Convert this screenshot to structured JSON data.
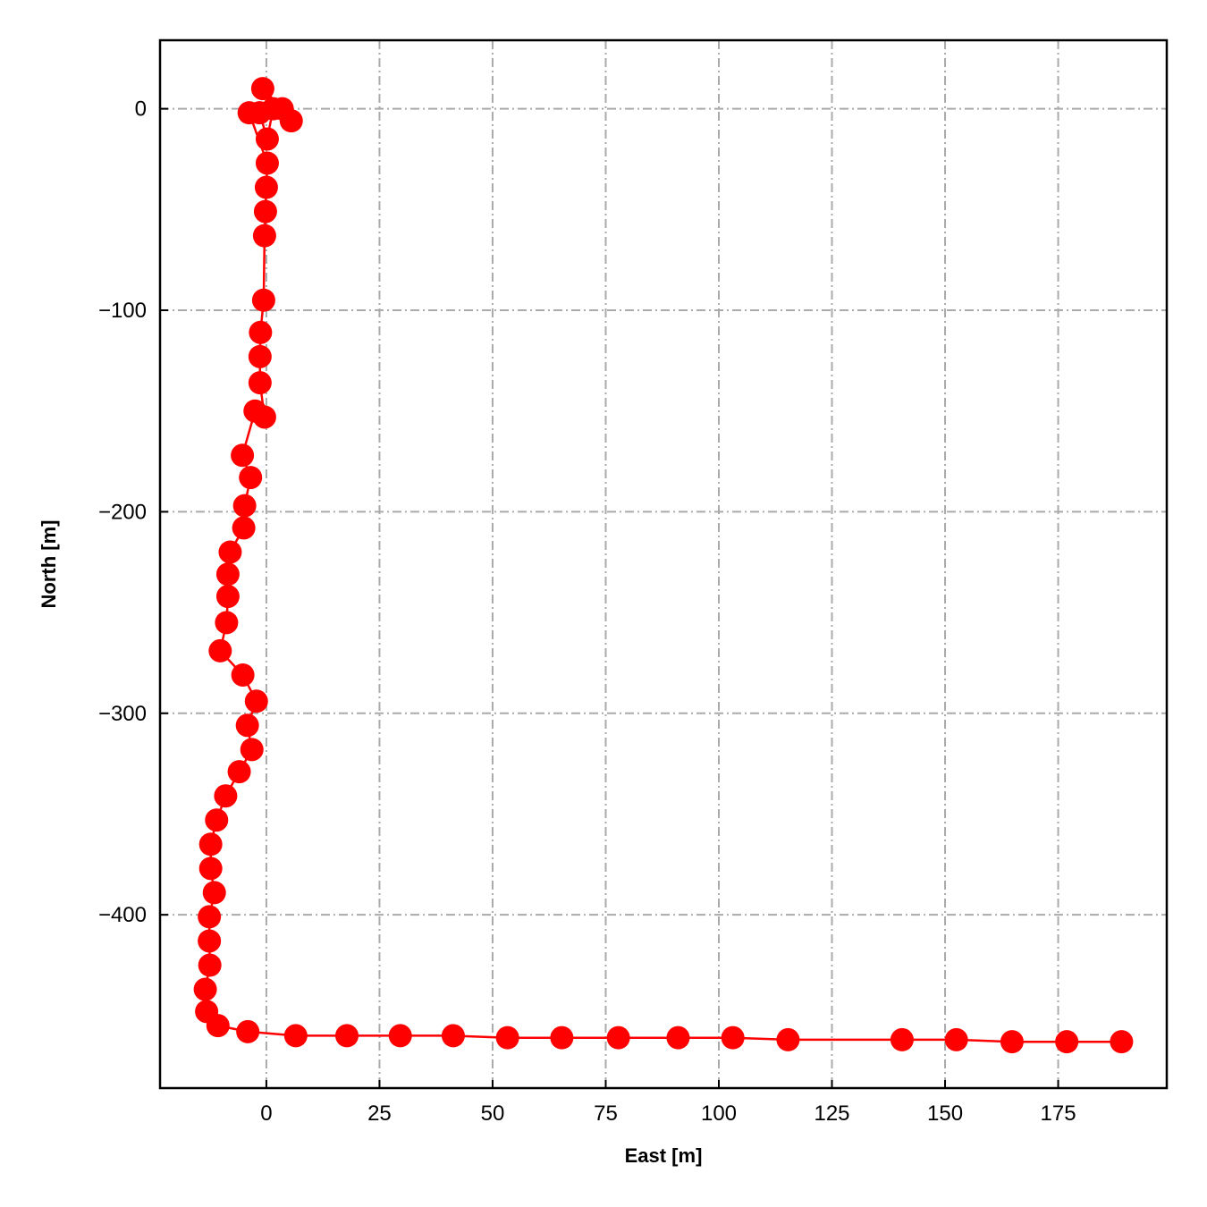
{
  "chart_data": {
    "type": "line",
    "title": "",
    "xlabel": "East [m]",
    "ylabel": "North [m]",
    "xlim": [
      -23.5,
      199
    ],
    "ylim": [
      -486,
      34
    ],
    "xticks": [
      0,
      25,
      50,
      75,
      100,
      125,
      150,
      175
    ],
    "yticks": [
      0,
      -100,
      -200,
      -300,
      -400
    ],
    "xtick_labels": [
      "0",
      "25",
      "50",
      "75",
      "100",
      "125",
      "150",
      "175"
    ],
    "ytick_labels": [
      "0",
      "−100",
      "−200",
      "−300",
      "−400"
    ],
    "grid": true,
    "grid_style": "dashdot",
    "markers": true,
    "series": [
      {
        "color": "#ff0000",
        "x": [
          -0.8,
          3.5,
          5.5,
          1.5,
          0.2,
          -1.5,
          -3.8,
          0.2,
          0.0,
          -0.2,
          -0.4,
          -0.6,
          -1.3,
          -1.4,
          -1.4,
          -0.4,
          -2.5,
          -5.3,
          -3.5,
          -4.8,
          -5.0,
          -8.0,
          -8.5,
          -8.5,
          -8.8,
          -10.2,
          -5.2,
          -2.2,
          -4.2,
          -3.2,
          -6.0,
          -9.0,
          -11.0,
          -12.3,
          -12.3,
          -11.5,
          -12.6,
          -12.6,
          -12.5,
          -13.5,
          -13.2,
          -10.7,
          -4.1,
          6.5,
          17.8,
          29.6,
          41.3,
          53.3,
          65.3,
          77.8,
          91.0,
          103.1,
          115.3,
          140.5,
          152.5,
          164.8,
          176.9,
          189.0
        ],
        "y": [
          10,
          0,
          -6,
          0,
          -15,
          -2,
          -2,
          -27,
          -39,
          -51,
          -63,
          -95,
          -111,
          -123,
          -136,
          -153,
          -150,
          -172,
          -183,
          -197,
          -208,
          -220,
          -231,
          -242,
          -255,
          -269,
          -281,
          -294,
          -306,
          -318,
          -329,
          -341,
          -353,
          -365,
          -377,
          -389,
          -401,
          -413,
          -425,
          -437,
          -448,
          -455,
          -458,
          -460,
          -460,
          -460,
          -460,
          -461,
          -461,
          -461,
          -461,
          -461,
          -462,
          -462,
          -462,
          -463,
          -463,
          -463
        ]
      }
    ]
  }
}
